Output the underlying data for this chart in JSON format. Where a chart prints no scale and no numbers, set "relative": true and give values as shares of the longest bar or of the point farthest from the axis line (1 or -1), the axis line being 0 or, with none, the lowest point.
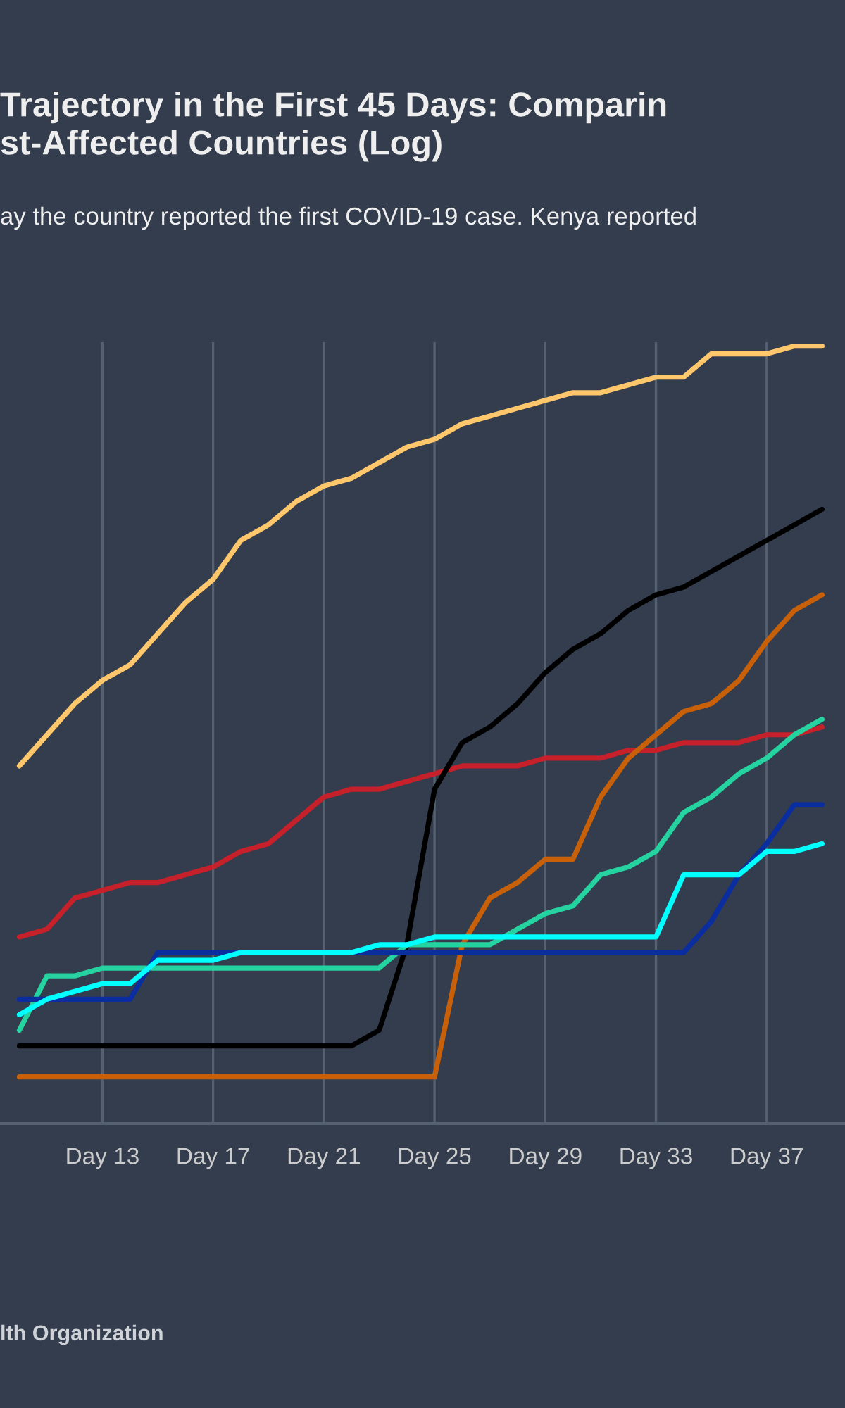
{
  "chart_data": {
    "type": "line",
    "title": "Trajectory in the First 45 Days: Comparin\nst-Affected Countries (Log)",
    "subtitle": "ay the country reported the first COVID-19 case. Kenya reported",
    "annotations": [
      "lth Organization"
    ],
    "relative": true,
    "categories": [
      null,
      null,
      null,
      "Day 13",
      null,
      null,
      null,
      "Day 17",
      null,
      null,
      null,
      "Day 21",
      null,
      null,
      null,
      "Day 25",
      null,
      null,
      null,
      "Day 29",
      null,
      null,
      null,
      "Day 33",
      null,
      null,
      null,
      "Day 37",
      null,
      null
    ],
    "grid": "x",
    "tick_labels": "x",
    "series": [
      {
        "color": "#ffc76b",
        "values": [
          0.46,
          0.5,
          0.54,
          0.57,
          0.59,
          0.63,
          0.67,
          0.7,
          0.75,
          0.77,
          0.8,
          0.82,
          0.83,
          0.85,
          0.87,
          0.88,
          0.9,
          0.91,
          0.92,
          0.93,
          0.94,
          0.94,
          0.95,
          0.96,
          0.96,
          0.99,
          0.99,
          0.99,
          1.0,
          1.0
        ]
      },
      {
        "color": "#c6202a",
        "values": [
          0.24,
          0.25,
          0.29,
          0.3,
          0.31,
          0.31,
          0.32,
          0.33,
          0.35,
          0.36,
          0.39,
          0.42,
          0.43,
          0.43,
          0.44,
          0.45,
          0.46,
          0.46,
          0.46,
          0.47,
          0.47,
          0.47,
          0.48,
          0.48,
          0.49,
          0.49,
          0.49,
          0.5,
          0.5,
          0.51
        ]
      },
      {
        "color": "#000000",
        "values": [
          0.1,
          0.1,
          0.1,
          0.1,
          0.1,
          0.1,
          0.1,
          0.1,
          0.1,
          0.1,
          0.1,
          0.1,
          0.1,
          0.12,
          0.23,
          0.43,
          0.49,
          0.51,
          0.54,
          0.58,
          0.61,
          0.63,
          0.66,
          0.68,
          0.69,
          0.71,
          0.73,
          0.75,
          0.77,
          0.79
        ]
      },
      {
        "color": "#c8600a",
        "values": [
          0.06,
          0.06,
          0.06,
          0.06,
          0.06,
          0.06,
          0.06,
          0.06,
          0.06,
          0.06,
          0.06,
          0.06,
          0.06,
          0.06,
          0.06,
          0.06,
          0.23,
          0.29,
          0.31,
          0.34,
          0.34,
          0.42,
          0.47,
          0.5,
          0.53,
          0.54,
          0.57,
          0.62,
          0.66,
          0.68
        ]
      },
      {
        "color": "#25d3a0",
        "values": [
          0.12,
          0.19,
          0.19,
          0.2,
          0.2,
          0.2,
          0.2,
          0.2,
          0.2,
          0.2,
          0.2,
          0.2,
          0.2,
          0.2,
          0.23,
          0.23,
          0.23,
          0.23,
          0.25,
          0.27,
          0.28,
          0.32,
          0.33,
          0.35,
          0.4,
          0.42,
          0.45,
          0.47,
          0.5,
          0.52
        ]
      },
      {
        "color": "#0a2da0",
        "values": [
          0.16,
          0.16,
          0.16,
          0.16,
          0.16,
          0.22,
          0.22,
          0.22,
          0.22,
          0.22,
          0.22,
          0.22,
          0.22,
          0.22,
          0.22,
          0.22,
          0.22,
          0.22,
          0.22,
          0.22,
          0.22,
          0.22,
          0.22,
          0.22,
          0.22,
          0.26,
          0.32,
          0.36,
          0.41,
          0.41
        ]
      },
      {
        "color": "#00ffff",
        "values": [
          0.14,
          0.16,
          0.17,
          0.18,
          0.18,
          0.21,
          0.21,
          0.21,
          0.22,
          0.22,
          0.22,
          0.22,
          0.22,
          0.23,
          0.23,
          0.24,
          0.24,
          0.24,
          0.24,
          0.24,
          0.24,
          0.24,
          0.24,
          0.24,
          0.32,
          0.32,
          0.32,
          0.35,
          0.35,
          0.36
        ]
      }
    ]
  }
}
